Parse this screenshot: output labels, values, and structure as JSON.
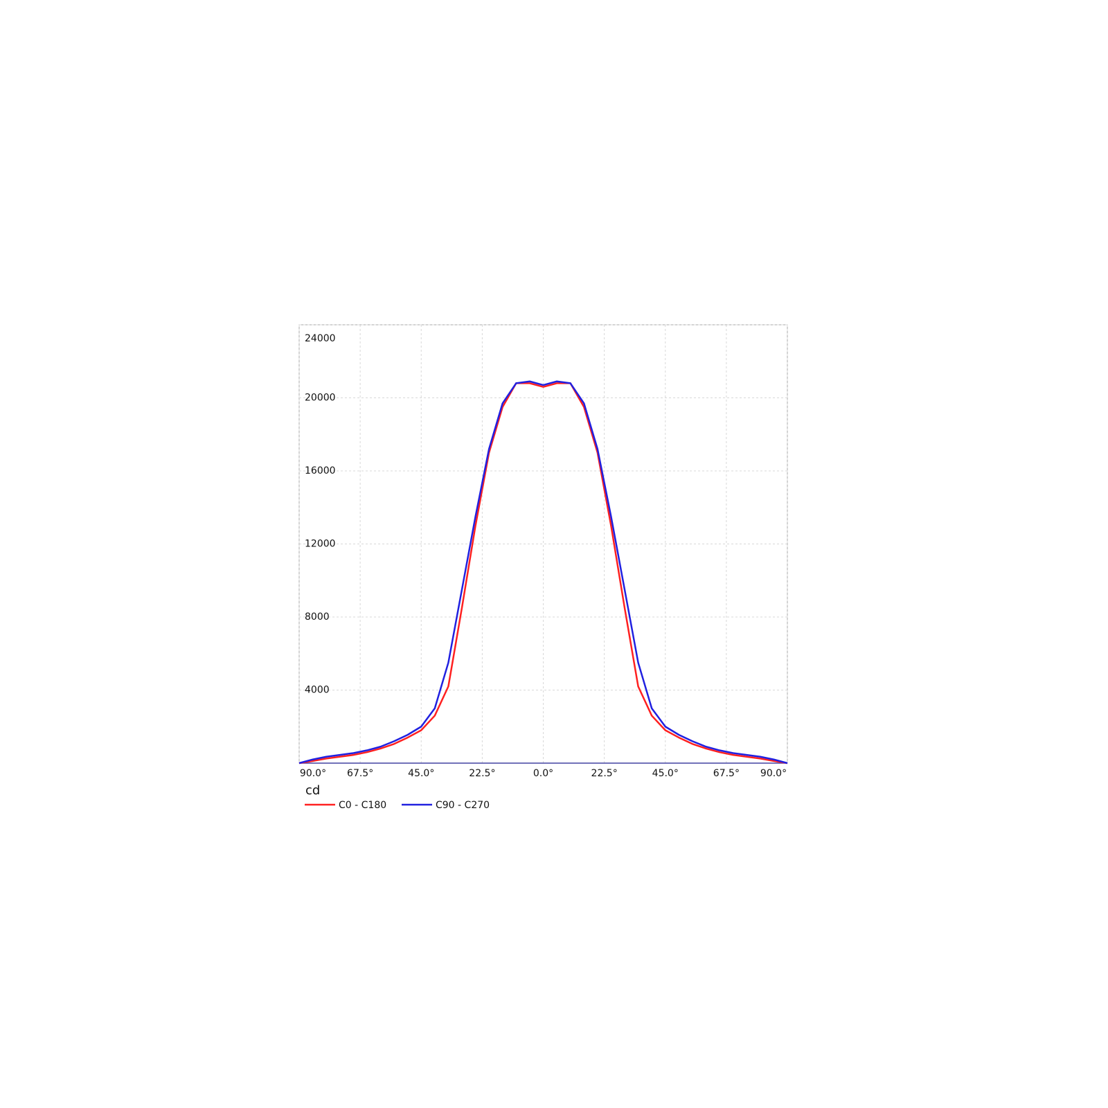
{
  "chart_data": {
    "type": "line",
    "y_label": "cd",
    "x": [
      -90,
      -85,
      -80,
      -75,
      -70,
      -65,
      -60,
      -55,
      -50,
      -45,
      -40,
      -35,
      -30,
      -25,
      -20,
      -15,
      -10,
      -5,
      0,
      5,
      10,
      15,
      20,
      25,
      30,
      35,
      40,
      45,
      50,
      55,
      60,
      65,
      70,
      75,
      80,
      85,
      90
    ],
    "series": [
      {
        "name": "C0 - C180",
        "color": "#ff2020",
        "values": [
          0,
          120,
          250,
          350,
          450,
          600,
          800,
          1050,
          1400,
          1800,
          2600,
          4200,
          8500,
          13000,
          17000,
          19500,
          20800,
          20800,
          20600,
          20800,
          20800,
          19500,
          17000,
          13000,
          8500,
          4200,
          2600,
          1800,
          1400,
          1050,
          800,
          600,
          450,
          350,
          250,
          120,
          0
        ]
      },
      {
        "name": "C90 - C270",
        "color": "#2020e0",
        "values": [
          0,
          200,
          350,
          450,
          550,
          700,
          900,
          1200,
          1550,
          2000,
          3000,
          5500,
          9500,
          13500,
          17200,
          19700,
          20800,
          20900,
          20700,
          20900,
          20800,
          19700,
          17200,
          13500,
          9500,
          5500,
          3000,
          2000,
          1550,
          1200,
          900,
          700,
          550,
          450,
          350,
          200,
          0
        ]
      }
    ],
    "xlim": [
      -90,
      90
    ],
    "xticks": [
      {
        "value": -90,
        "label": "90.0°"
      },
      {
        "value": -67.5,
        "label": "67.5°"
      },
      {
        "value": -45,
        "label": "45.0°"
      },
      {
        "value": -22.5,
        "label": "22.5°"
      },
      {
        "value": 0,
        "label": "0.0°"
      },
      {
        "value": 22.5,
        "label": "22.5°"
      },
      {
        "value": 45,
        "label": "45.0°"
      },
      {
        "value": 67.5,
        "label": "67.5°"
      },
      {
        "value": 90,
        "label": "90.0°"
      }
    ],
    "ylim": [
      0,
      24000
    ],
    "yticks": [
      4000,
      8000,
      12000,
      16000,
      20000,
      24000
    ],
    "grid": true
  }
}
